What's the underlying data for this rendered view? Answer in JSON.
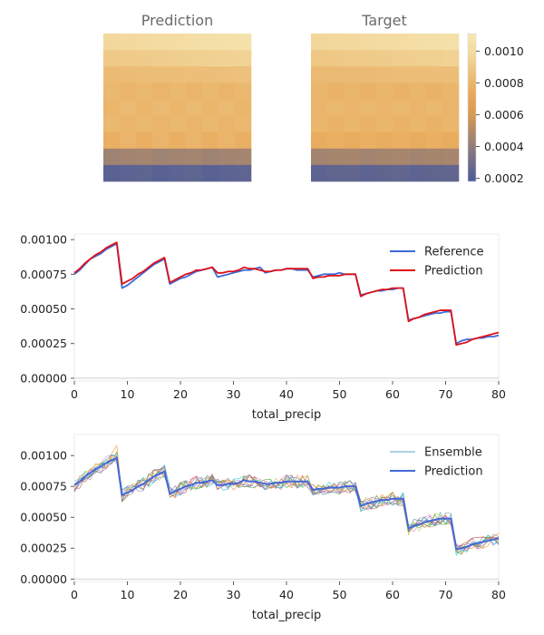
{
  "colors": {
    "reference": "#3b6bd9",
    "prediction_red": "#e0101a",
    "prediction_blue": "#4468d8",
    "colormap": [
      "#4a5a9a",
      "#8a7a7e",
      "#d79a52",
      "#e7a95b",
      "#f2d79a",
      "#f6e7b3"
    ]
  },
  "chart_data": [
    {
      "type": "heatmap",
      "title": "Prediction",
      "rows": 9,
      "cols": 9,
      "row_values": [
        0.00098,
        0.0009,
        0.00083,
        0.0008,
        0.00081,
        0.0008,
        0.00078,
        0.00045,
        0.00024
      ]
    },
    {
      "type": "heatmap",
      "title": "Target",
      "rows": 9,
      "cols": 9,
      "row_values": [
        0.00097,
        0.00089,
        0.00082,
        0.00079,
        0.0008,
        0.00079,
        0.00076,
        0.00046,
        0.00025
      ],
      "colorbar": {
        "range": [
          0.00018,
          0.00111
        ],
        "ticks": [
          "0.0002",
          "0.0004",
          "0.0006",
          "0.0008",
          "0.0010"
        ],
        "tick_values": [
          0.0002,
          0.0004,
          0.0006,
          0.0008,
          0.001
        ]
      }
    },
    {
      "type": "line",
      "xlabel": "total_precip",
      "xlim": [
        0,
        80
      ],
      "ylim": [
        -2e-05,
        0.00104
      ],
      "xticks": [
        0,
        10,
        20,
        30,
        40,
        50,
        60,
        70,
        80
      ],
      "yticks": [
        "0.00000",
        "0.00025",
        "0.00050",
        "0.00075",
        "0.00100"
      ],
      "ytick_values": [
        0,
        0.00025,
        0.0005,
        0.00075,
        0.001
      ],
      "legend": "upper right",
      "series": [
        {
          "name": "Reference",
          "style": "reference"
        },
        {
          "name": "Prediction",
          "style": "prediction_red"
        }
      ]
    },
    {
      "type": "line",
      "xlabel": "total_precip",
      "xlim": [
        0,
        80
      ],
      "ylim": [
        -2e-05,
        0.00117
      ],
      "xticks": [
        0,
        10,
        20,
        30,
        40,
        50,
        60,
        70,
        80
      ],
      "yticks": [
        "0.00000",
        "0.00025",
        "0.00050",
        "0.00075",
        "0.00100"
      ],
      "ytick_values": [
        0,
        0.00025,
        0.0005,
        0.00075,
        0.001
      ],
      "legend": "upper right",
      "series": [
        {
          "name": "Ensemble",
          "style": "ensemble"
        },
        {
          "name": "Prediction",
          "style": "prediction_blue"
        }
      ],
      "ensemble_members": 10
    }
  ],
  "profile": {
    "x": [
      0,
      1,
      2,
      3,
      4,
      5,
      6,
      7,
      8,
      9,
      10,
      11,
      12,
      13,
      14,
      15,
      16,
      17,
      18,
      19,
      20,
      21,
      22,
      23,
      24,
      25,
      26,
      27,
      28,
      29,
      30,
      31,
      32,
      33,
      34,
      35,
      36,
      37,
      38,
      39,
      40,
      41,
      42,
      43,
      44,
      45,
      46,
      47,
      48,
      49,
      50,
      51,
      52,
      53,
      54,
      55,
      56,
      57,
      58,
      59,
      60,
      61,
      62,
      63,
      64,
      65,
      66,
      67,
      68,
      69,
      70,
      71,
      72,
      73,
      74,
      75,
      76,
      77,
      78,
      79,
      80
    ],
    "reference": [
      0.00075,
      0.00078,
      0.00082,
      0.00086,
      0.00088,
      0.0009,
      0.00093,
      0.00095,
      0.00097,
      0.00065,
      0.00067,
      0.0007,
      0.00073,
      0.00076,
      0.00079,
      0.00082,
      0.00084,
      0.00086,
      0.00068,
      0.0007,
      0.00072,
      0.00073,
      0.00075,
      0.00077,
      0.00078,
      0.00079,
      0.0008,
      0.00073,
      0.00074,
      0.00075,
      0.00076,
      0.00077,
      0.00078,
      0.00078,
      0.00079,
      0.0008,
      0.00076,
      0.00077,
      0.00078,
      0.00078,
      0.00079,
      0.00079,
      0.00078,
      0.00078,
      0.00078,
      0.00073,
      0.00074,
      0.00075,
      0.00075,
      0.00075,
      0.00076,
      0.00075,
      0.00075,
      0.00075,
      0.0006,
      0.00061,
      0.00062,
      0.00063,
      0.00063,
      0.00064,
      0.00064,
      0.00065,
      0.00065,
      0.00042,
      0.00043,
      0.00044,
      0.00045,
      0.00046,
      0.00047,
      0.00047,
      0.00048,
      0.00048,
      0.00025,
      0.00027,
      0.00028,
      0.00028,
      0.00029,
      0.00029,
      0.0003,
      0.0003,
      0.00031
    ],
    "prediction": [
      0.00076,
      0.00079,
      0.00083,
      0.00086,
      0.00089,
      0.00091,
      0.00094,
      0.00096,
      0.00098,
      0.00068,
      0.0007,
      0.00072,
      0.00075,
      0.00077,
      0.0008,
      0.00083,
      0.00085,
      0.00087,
      0.00069,
      0.00071,
      0.00073,
      0.00075,
      0.00076,
      0.00078,
      0.00078,
      0.00079,
      0.0008,
      0.00076,
      0.00076,
      0.00077,
      0.00077,
      0.00078,
      0.0008,
      0.00079,
      0.00079,
      0.00078,
      0.00077,
      0.00077,
      0.00078,
      0.00078,
      0.00079,
      0.00079,
      0.00079,
      0.00079,
      0.00079,
      0.00072,
      0.00073,
      0.00073,
      0.00074,
      0.00074,
      0.00074,
      0.00075,
      0.00075,
      0.00075,
      0.00059,
      0.00061,
      0.00062,
      0.00063,
      0.00064,
      0.00064,
      0.00065,
      0.00065,
      0.00065,
      0.00041,
      0.00043,
      0.00044,
      0.00046,
      0.00047,
      0.00048,
      0.00049,
      0.00049,
      0.00049,
      0.00024,
      0.00025,
      0.00026,
      0.00028,
      0.00029,
      0.0003,
      0.00031,
      0.00032,
      0.00033
    ]
  }
}
